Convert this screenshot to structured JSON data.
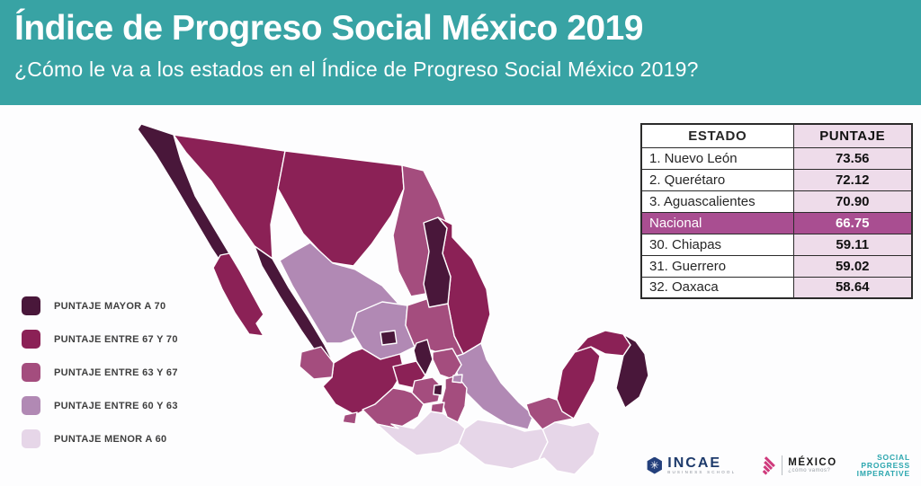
{
  "header": {
    "title": "Índice de Progreso Social México 2019",
    "subtitle": "¿Cómo le va a los estados en el Índice de Progreso Social México 2019?",
    "background_color": "#38a3a4"
  },
  "legend": {
    "items": [
      {
        "label": "PUNTAJE MAYOR A 70",
        "color": "#49173a"
      },
      {
        "label": "PUNTAJE ENTRE 67 Y 70",
        "color": "#8b2156"
      },
      {
        "label": "PUNTAJE ENTRE 63 Y 67",
        "color": "#a44d7e"
      },
      {
        "label": "PUNTAJE ENTRE 60 Y 63",
        "color": "#b189b4"
      },
      {
        "label": "PUNTAJE MENOR A 60",
        "color": "#e6d6e8"
      }
    ]
  },
  "table": {
    "headers": [
      "ESTADO",
      "PUNTAJE"
    ],
    "rows": [
      {
        "estado": "1. Nuevo León",
        "puntaje": "73.56",
        "highlight": false
      },
      {
        "estado": "2. Querétaro",
        "puntaje": "72.12",
        "highlight": false
      },
      {
        "estado": "3. Aguascalientes",
        "puntaje": "70.90",
        "highlight": false
      },
      {
        "estado": "Nacional",
        "puntaje": "66.75",
        "highlight": true
      },
      {
        "estado": "30. Chiapas",
        "puntaje": "59.11",
        "highlight": false
      },
      {
        "estado": "31. Guerrero",
        "puntaje": "59.02",
        "highlight": false
      },
      {
        "estado": "32. Oaxaca",
        "puntaje": "58.64",
        "highlight": false
      }
    ],
    "highlight_color": "#a94e91",
    "score_column_color": "#eedcea"
  },
  "map": {
    "stroke_color": "#ffffff",
    "category_colors": {
      "cat1": "#49173a",
      "cat2": "#8b2156",
      "cat3": "#a44d7e",
      "cat4": "#b189b4",
      "cat5": "#e6d6e8"
    },
    "states": [
      {
        "id": "sonora",
        "name": "Sonora",
        "category": "cat2"
      },
      {
        "id": "chihuahua",
        "name": "Chihuahua",
        "category": "cat2"
      },
      {
        "id": "coahuila",
        "name": "Coahuila",
        "category": "cat3"
      },
      {
        "id": "tamaulipas",
        "name": "Tamaulipas",
        "category": "cat2"
      },
      {
        "id": "durango",
        "name": "Durango",
        "category": "cat4"
      },
      {
        "id": "zacatecas",
        "name": "Zacatecas",
        "category": "cat4"
      },
      {
        "id": "san-luis-potosi",
        "name": "San Luis Potosí",
        "category": "cat3"
      },
      {
        "id": "veracruz",
        "name": "Veracruz",
        "category": "cat4"
      },
      {
        "id": "jalisco",
        "name": "Jalisco",
        "category": "cat2"
      },
      {
        "id": "michoacan",
        "name": "Michoacán",
        "category": "cat3"
      },
      {
        "id": "guerrero",
        "name": "Guerrero",
        "category": "cat5"
      },
      {
        "id": "oaxaca",
        "name": "Oaxaca",
        "category": "cat5"
      },
      {
        "id": "chiapas",
        "name": "Chiapas",
        "category": "cat5"
      },
      {
        "id": "tabasco",
        "name": "Tabasco",
        "category": "cat3"
      },
      {
        "id": "campeche",
        "name": "Campeche",
        "category": "cat2"
      },
      {
        "id": "yucatan",
        "name": "Yucatán",
        "category": "cat2"
      },
      {
        "id": "quintana-roo",
        "name": "Quintana Roo",
        "category": "cat1"
      },
      {
        "id": "sinaloa",
        "name": "Sinaloa",
        "category": "cat1"
      },
      {
        "id": "nuevo-leon",
        "name": "Nuevo León",
        "category": "cat1"
      },
      {
        "id": "nayarit",
        "name": "Nayarit",
        "category": "cat3"
      },
      {
        "id": "guanajuato",
        "name": "Guanajuato",
        "category": "cat2"
      },
      {
        "id": "queretaro",
        "name": "Querétaro",
        "category": "cat1"
      },
      {
        "id": "hidalgo",
        "name": "Hidalgo",
        "category": "cat3"
      },
      {
        "id": "edomex",
        "name": "Estado de México",
        "category": "cat3"
      },
      {
        "id": "puebla",
        "name": "Puebla",
        "category": "cat3"
      },
      {
        "id": "morelos",
        "name": "Morelos",
        "category": "cat3"
      },
      {
        "id": "colima",
        "name": "Colima",
        "category": "cat3"
      },
      {
        "id": "tlaxcala",
        "name": "Tlaxcala",
        "category": "cat4"
      },
      {
        "id": "aguascalientes",
        "name": "Aguascalientes",
        "category": "cat1"
      },
      {
        "id": "cdmx",
        "name": "Ciudad de México",
        "category": "cat1"
      },
      {
        "id": "baja-california",
        "name": "Baja California",
        "category": "cat1"
      },
      {
        "id": "baja-california-sur",
        "name": "Baja California Sur",
        "category": "cat2"
      }
    ]
  },
  "footer": {
    "incae": {
      "name": "INCAE",
      "subtext": "BUSINESS SCHOOL",
      "icon_glyph": "✳"
    },
    "mexico": {
      "name": "MÉXICO",
      "subtext": "¿cómo vamos?"
    },
    "spi": {
      "lines": [
        "SOCIAL",
        "PROGRESS",
        "IMPERATIVE"
      ],
      "color": "#2ba6ae"
    }
  }
}
